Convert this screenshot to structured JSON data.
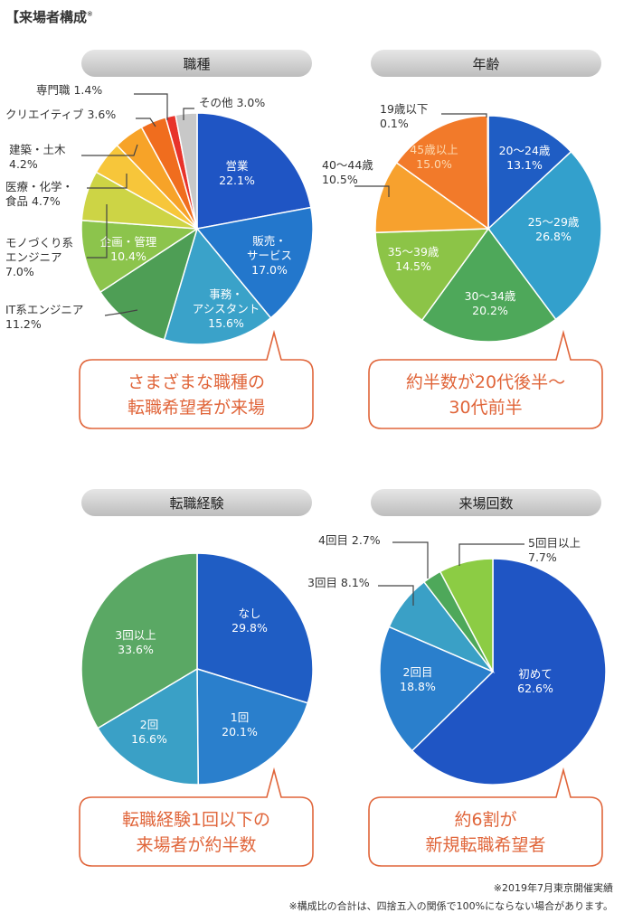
{
  "page": {
    "title": "【来場者構成",
    "title_mark": "※"
  },
  "chart_data": [
    {
      "type": "pie",
      "title": "職種",
      "slices": [
        {
          "label": "営業",
          "value": 22.1,
          "color": "#1f55c4"
        },
        {
          "label": "販売・サービス",
          "value": 17.0,
          "color": "#2377cc"
        },
        {
          "label": "事務・アシスタント",
          "value": 15.6,
          "color": "#3aa2c9"
        },
        {
          "label": "IT系エンジニア",
          "value": 11.2,
          "color": "#4e9e55"
        },
        {
          "label": "企画・管理",
          "value": 10.4,
          "color": "#8cc44c"
        },
        {
          "label": "モノづくり系エンジニア",
          "value": 7.0,
          "color": "#cdd445"
        },
        {
          "label": "医療・化学・食品",
          "value": 4.7,
          "color": "#f7c63a"
        },
        {
          "label": "建築・土木",
          "value": 4.2,
          "color": "#f7a328"
        },
        {
          "label": "クリエイティブ",
          "value": 3.6,
          "color": "#f06d1e"
        },
        {
          "label": "専門職",
          "value": 1.4,
          "color": "#e8332b"
        },
        {
          "label": "その他",
          "value": 3.0,
          "color": "#c8c8c8"
        }
      ],
      "annotations": [
        {
          "line1": "営業",
          "line2": "22.1%"
        },
        {
          "line1": "販売・",
          "line2": "サービス",
          "line3": "17.0%"
        },
        {
          "line1": "事務・",
          "line2": "アシスタント",
          "line3": "15.6%"
        },
        {
          "line1": "企画・管理",
          "line2": "10.4%"
        },
        {
          "line1": "その他 3.0%"
        },
        {
          "line1": "専門職 1.4%"
        },
        {
          "line1": "クリエイティブ 3.6%"
        },
        {
          "line1": "建築・土木",
          "line2": "4.2%"
        },
        {
          "line1": "医療・化学・",
          "line2": "食品 4.7%"
        },
        {
          "line1": "モノづくり系",
          "line2": "エンジニア",
          "line3": "7.0%"
        },
        {
          "line1": "IT系エンジニア",
          "line2": "11.2%"
        }
      ],
      "callout": [
        "さまざまな職種の",
        "転職希望者が来場"
      ]
    },
    {
      "type": "pie",
      "title": "年齢",
      "slices": [
        {
          "label": "20〜24歳",
          "value": 13.1,
          "color": "#1f5dc4"
        },
        {
          "label": "25〜29歳",
          "value": 26.8,
          "color": "#33a0cc"
        },
        {
          "label": "30〜34歳",
          "value": 20.2,
          "color": "#4ea85a"
        },
        {
          "label": "35〜39歳",
          "value": 14.5,
          "color": "#8cc447"
        },
        {
          "label": "40〜44歳",
          "value": 10.5,
          "color": "#f7a12e"
        },
        {
          "label": "45歳以上",
          "value": 15.0,
          "color": "#f27a2a"
        },
        {
          "label": "19歳以下",
          "value": 0.1,
          "color": "#cccccc"
        }
      ],
      "annotations": [
        {
          "line1": "20〜24歳",
          "line2": "13.1%"
        },
        {
          "line1": "25〜29歳",
          "line2": "26.8%"
        },
        {
          "line1": "30〜34歳",
          "line2": "20.2%"
        },
        {
          "line1": "35〜39歳",
          "line2": "14.5%"
        },
        {
          "line1": "45歳以上",
          "line2": "15.0%"
        },
        {
          "line1": "40〜44歳",
          "line2": "10.5%"
        },
        {
          "line1": "19歳以下",
          "line2": "0.1%"
        }
      ],
      "callout": [
        "約半数が20代後半〜",
        "30代前半"
      ]
    },
    {
      "type": "pie",
      "title": "転職経験",
      "slices": [
        {
          "label": "なし",
          "value": 29.8,
          "color": "#1f5dc4"
        },
        {
          "label": "1回",
          "value": 20.1,
          "color": "#2a7fcc"
        },
        {
          "label": "2回",
          "value": 16.6,
          "color": "#3aa0c6"
        },
        {
          "label": "3回以上",
          "value": 33.6,
          "color": "#5aa864"
        }
      ],
      "annotations": [
        {
          "line1": "なし",
          "line2": "29.8%"
        },
        {
          "line1": "1回",
          "line2": "20.1%"
        },
        {
          "line1": "2回",
          "line2": "16.6%"
        },
        {
          "line1": "3回以上",
          "line2": "33.6%"
        }
      ],
      "callout": [
        "転職経験1回以下の",
        "来場者が約半数"
      ]
    },
    {
      "type": "pie",
      "title": "来場回数",
      "slices": [
        {
          "label": "初めて",
          "value": 62.6,
          "color": "#1f55c4"
        },
        {
          "label": "2回目",
          "value": 18.8,
          "color": "#2a7fcc"
        },
        {
          "label": "3回目",
          "value": 8.1,
          "color": "#3aa0c6"
        },
        {
          "label": "4回目",
          "value": 2.7,
          "color": "#4ea85a"
        },
        {
          "label": "5回目以上",
          "value": 7.7,
          "color": "#8ccc44"
        }
      ],
      "annotations": [
        {
          "line1": "初めて",
          "line2": "62.6%"
        },
        {
          "line1": "2回目",
          "line2": "18.8%"
        },
        {
          "line1": "3回目 8.1%"
        },
        {
          "line1": "4回目 2.7%"
        },
        {
          "line1": "5回目以上",
          "line2": "7.7%"
        }
      ],
      "callout": [
        "約6割が",
        "新規転職希望者"
      ]
    }
  ],
  "notes": {
    "line1": "※2019年7月東京開催実績",
    "line2": "※構成比の合計は、四捨五入の関係で100%にならない場合があります。"
  },
  "colors": {
    "callout_border": "#e0653a",
    "callout_text": "#e0653a",
    "leader": "#444444"
  }
}
